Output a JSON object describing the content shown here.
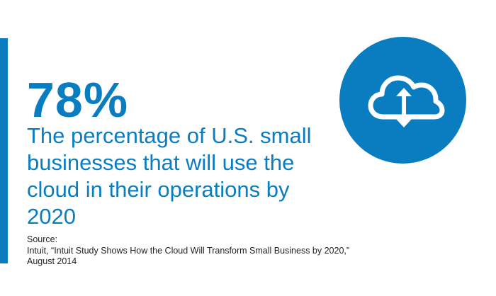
{
  "stat": {
    "value": "78%",
    "description": "The percentage of U.S. small businesses that will use the cloud in their operations by 2020"
  },
  "source": {
    "label": "Source:",
    "text": "Intuit, “Intuit Study Shows How the Cloud Will Transform Small Business by 2020,” August 2014"
  },
  "icon": "cloud-upload-download-icon",
  "colors": {
    "accent": "#0a7dc1",
    "text_blue": "#0a7dc1",
    "icon_bg": "#0a7dc1",
    "icon_fg": "#ffffff"
  }
}
